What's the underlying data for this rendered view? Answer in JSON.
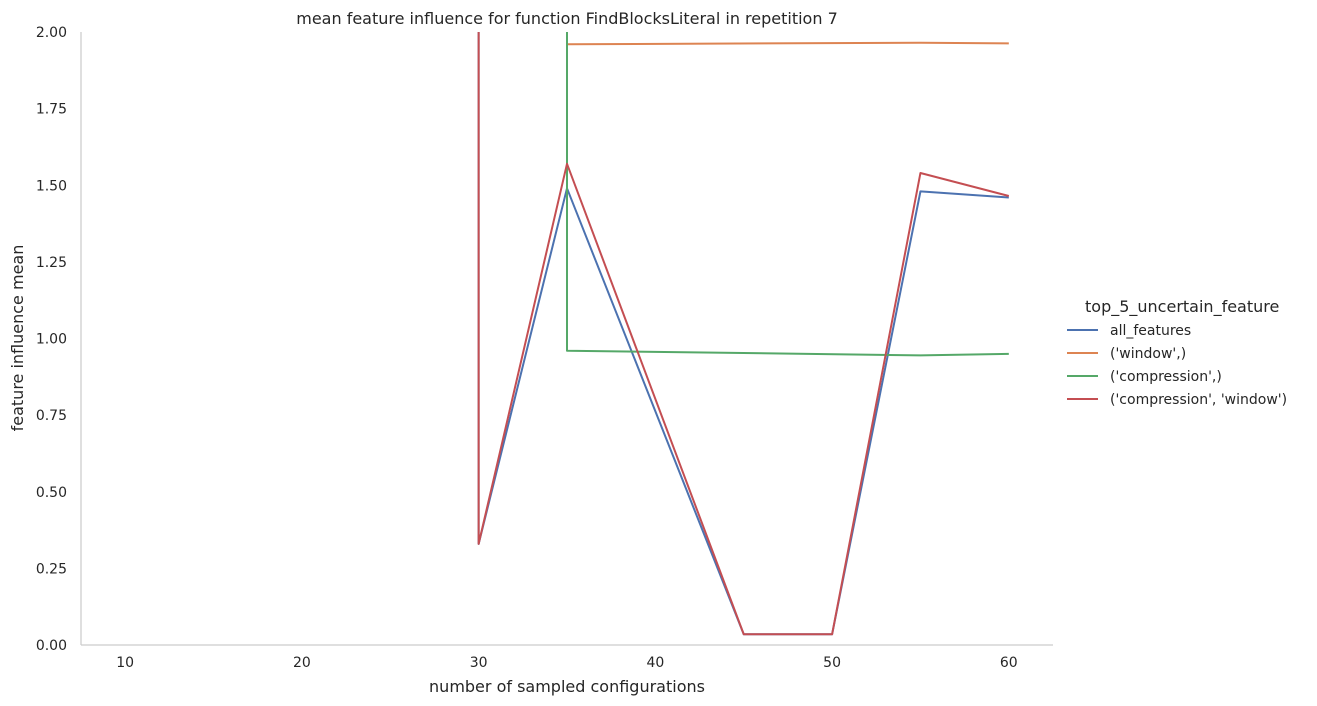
{
  "chart_data": {
    "type": "line",
    "title": "mean feature influence for function FindBlocksLiteral in repetition 7",
    "xlabel": "number of sampled configurations",
    "ylabel": "feature influence mean",
    "xlim": [
      7.5,
      62.5
    ],
    "ylim": [
      0,
      2
    ],
    "xticks": [
      10,
      20,
      30,
      40,
      50,
      60
    ],
    "xtick_labels": [
      "10",
      "20",
      "30",
      "40",
      "50",
      "60"
    ],
    "yticks": [
      0,
      0.25,
      0.5,
      0.75,
      1.0,
      1.25,
      1.5,
      1.75,
      2.0
    ],
    "ytick_labels": [
      "0.00",
      "0.25",
      "0.50",
      "0.75",
      "1.00",
      "1.25",
      "1.50",
      "1.75",
      "2.00"
    ],
    "grid": false,
    "legend": {
      "title": "top_5_uncertain_feature",
      "placement": "right"
    },
    "series": [
      {
        "name": "all_features",
        "color": "#4c72b0",
        "points": [
          [
            30,
            4.0
          ],
          [
            30,
            0.33
          ],
          [
            35,
            1.49
          ],
          [
            45,
            0.035
          ],
          [
            50,
            0.035
          ],
          [
            55,
            1.48
          ],
          [
            60,
            1.46
          ]
        ]
      },
      {
        "name": "('window',)",
        "color": "#dd8452",
        "points": [
          [
            35,
            4.0
          ],
          [
            35,
            1.96
          ],
          [
            55,
            1.965
          ],
          [
            60,
            1.963
          ]
        ]
      },
      {
        "name": "('compression',)",
        "color": "#55a868",
        "points": [
          [
            35,
            4.0
          ],
          [
            35,
            0.96
          ],
          [
            55,
            0.945
          ],
          [
            60,
            0.95
          ]
        ]
      },
      {
        "name": "('compression', 'window')",
        "color": "#c44e52",
        "points": [
          [
            30,
            4.0
          ],
          [
            30,
            0.33
          ],
          [
            35,
            1.57
          ],
          [
            45,
            0.035
          ],
          [
            50,
            0.035
          ],
          [
            55,
            1.54
          ],
          [
            60,
            1.465
          ]
        ]
      }
    ]
  }
}
